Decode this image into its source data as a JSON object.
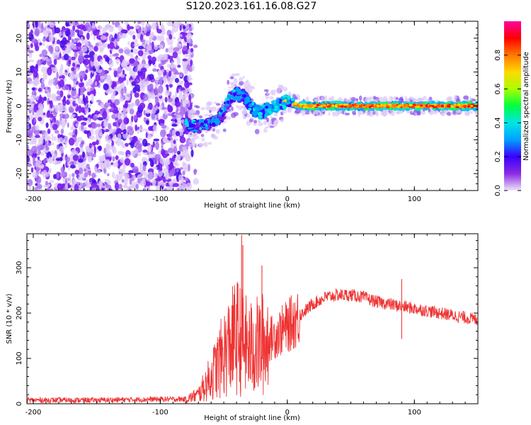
{
  "title": "S120.2023.161.16.08.G27",
  "chart_data": [
    {
      "type": "heatmap",
      "xlabel": "Height of straight line (km)",
      "ylabel": "Frequency (Hz)",
      "xlim": [
        -205,
        150
      ],
      "ylim": [
        -25,
        25
      ],
      "x_ticks": [
        -200,
        -100,
        0,
        100
      ],
      "y_ticks": [
        -20,
        -10,
        0,
        10,
        20
      ],
      "colorbar": {
        "label": "Normalized spectral amplitude",
        "range": [
          0,
          1
        ],
        "ticks": [
          0.0,
          0.2,
          0.4,
          0.6,
          0.8
        ],
        "colors": [
          "#f0e4fb",
          "#8a2be2",
          "#3a00ff",
          "#00a0ff",
          "#00e5e5",
          "#00ff40",
          "#a8ff00",
          "#ffd800",
          "#ff7800",
          "#ff0000",
          "#ff00a0"
        ]
      },
      "ridge": {
        "x": [
          -80,
          -75,
          -70,
          -65,
          -60,
          -55,
          -50,
          -45,
          -40,
          -35,
          -30,
          -25,
          -20,
          -15,
          -10,
          -5,
          0,
          5,
          10,
          20,
          40,
          60,
          80,
          100,
          120,
          150
        ],
        "y": [
          -5.5,
          -5.8,
          -6.0,
          -5.5,
          -5.0,
          -4.0,
          -2.0,
          2.5,
          3.5,
          3.0,
          0.5,
          -1.5,
          -2.0,
          -1.0,
          -0.5,
          0.5,
          1.5,
          0.5,
          0.0,
          0.0,
          0.0,
          0.0,
          0.0,
          0.0,
          0.0,
          0.0
        ],
        "amplitude": [
          0.25,
          0.3,
          0.3,
          0.3,
          0.3,
          0.3,
          0.3,
          0.35,
          0.45,
          0.5,
          0.55,
          0.6,
          0.7,
          0.72,
          0.74,
          0.76,
          0.8,
          0.82,
          0.85,
          0.9,
          0.92,
          0.92,
          0.92,
          0.92,
          0.92,
          0.92
        ]
      },
      "noise_region_x": [
        -205,
        -75
      ]
    },
    {
      "type": "line",
      "xlabel": "Height of straight line (km)",
      "ylabel": "SNR (10 * v/v)",
      "xlim": [
        -205,
        150
      ],
      "ylim": [
        0,
        375
      ],
      "x_ticks": [
        -200,
        -100,
        0,
        100
      ],
      "y_ticks": [
        0,
        100,
        200,
        300
      ],
      "color": "#ee3333",
      "envelope": {
        "x": [
          -205,
          -150,
          -100,
          -80,
          -70,
          -60,
          -50,
          -40,
          -30,
          -20,
          -10,
          0,
          10,
          20,
          30,
          40,
          50,
          60,
          70,
          80,
          90,
          100,
          110,
          120,
          130,
          140,
          150
        ],
        "y": [
          8,
          8,
          10,
          10,
          20,
          60,
          110,
          150,
          120,
          130,
          150,
          170,
          195,
          220,
          235,
          240,
          240,
          235,
          225,
          220,
          215,
          210,
          205,
          200,
          195,
          190,
          185
        ]
      },
      "spikes": [
        {
          "x": -36,
          "y": 372
        },
        {
          "x": -35,
          "y": 350
        },
        {
          "x": -20,
          "y": 305
        },
        {
          "x": 90,
          "y": 275
        },
        {
          "x": 90,
          "y": 143
        }
      ]
    }
  ]
}
